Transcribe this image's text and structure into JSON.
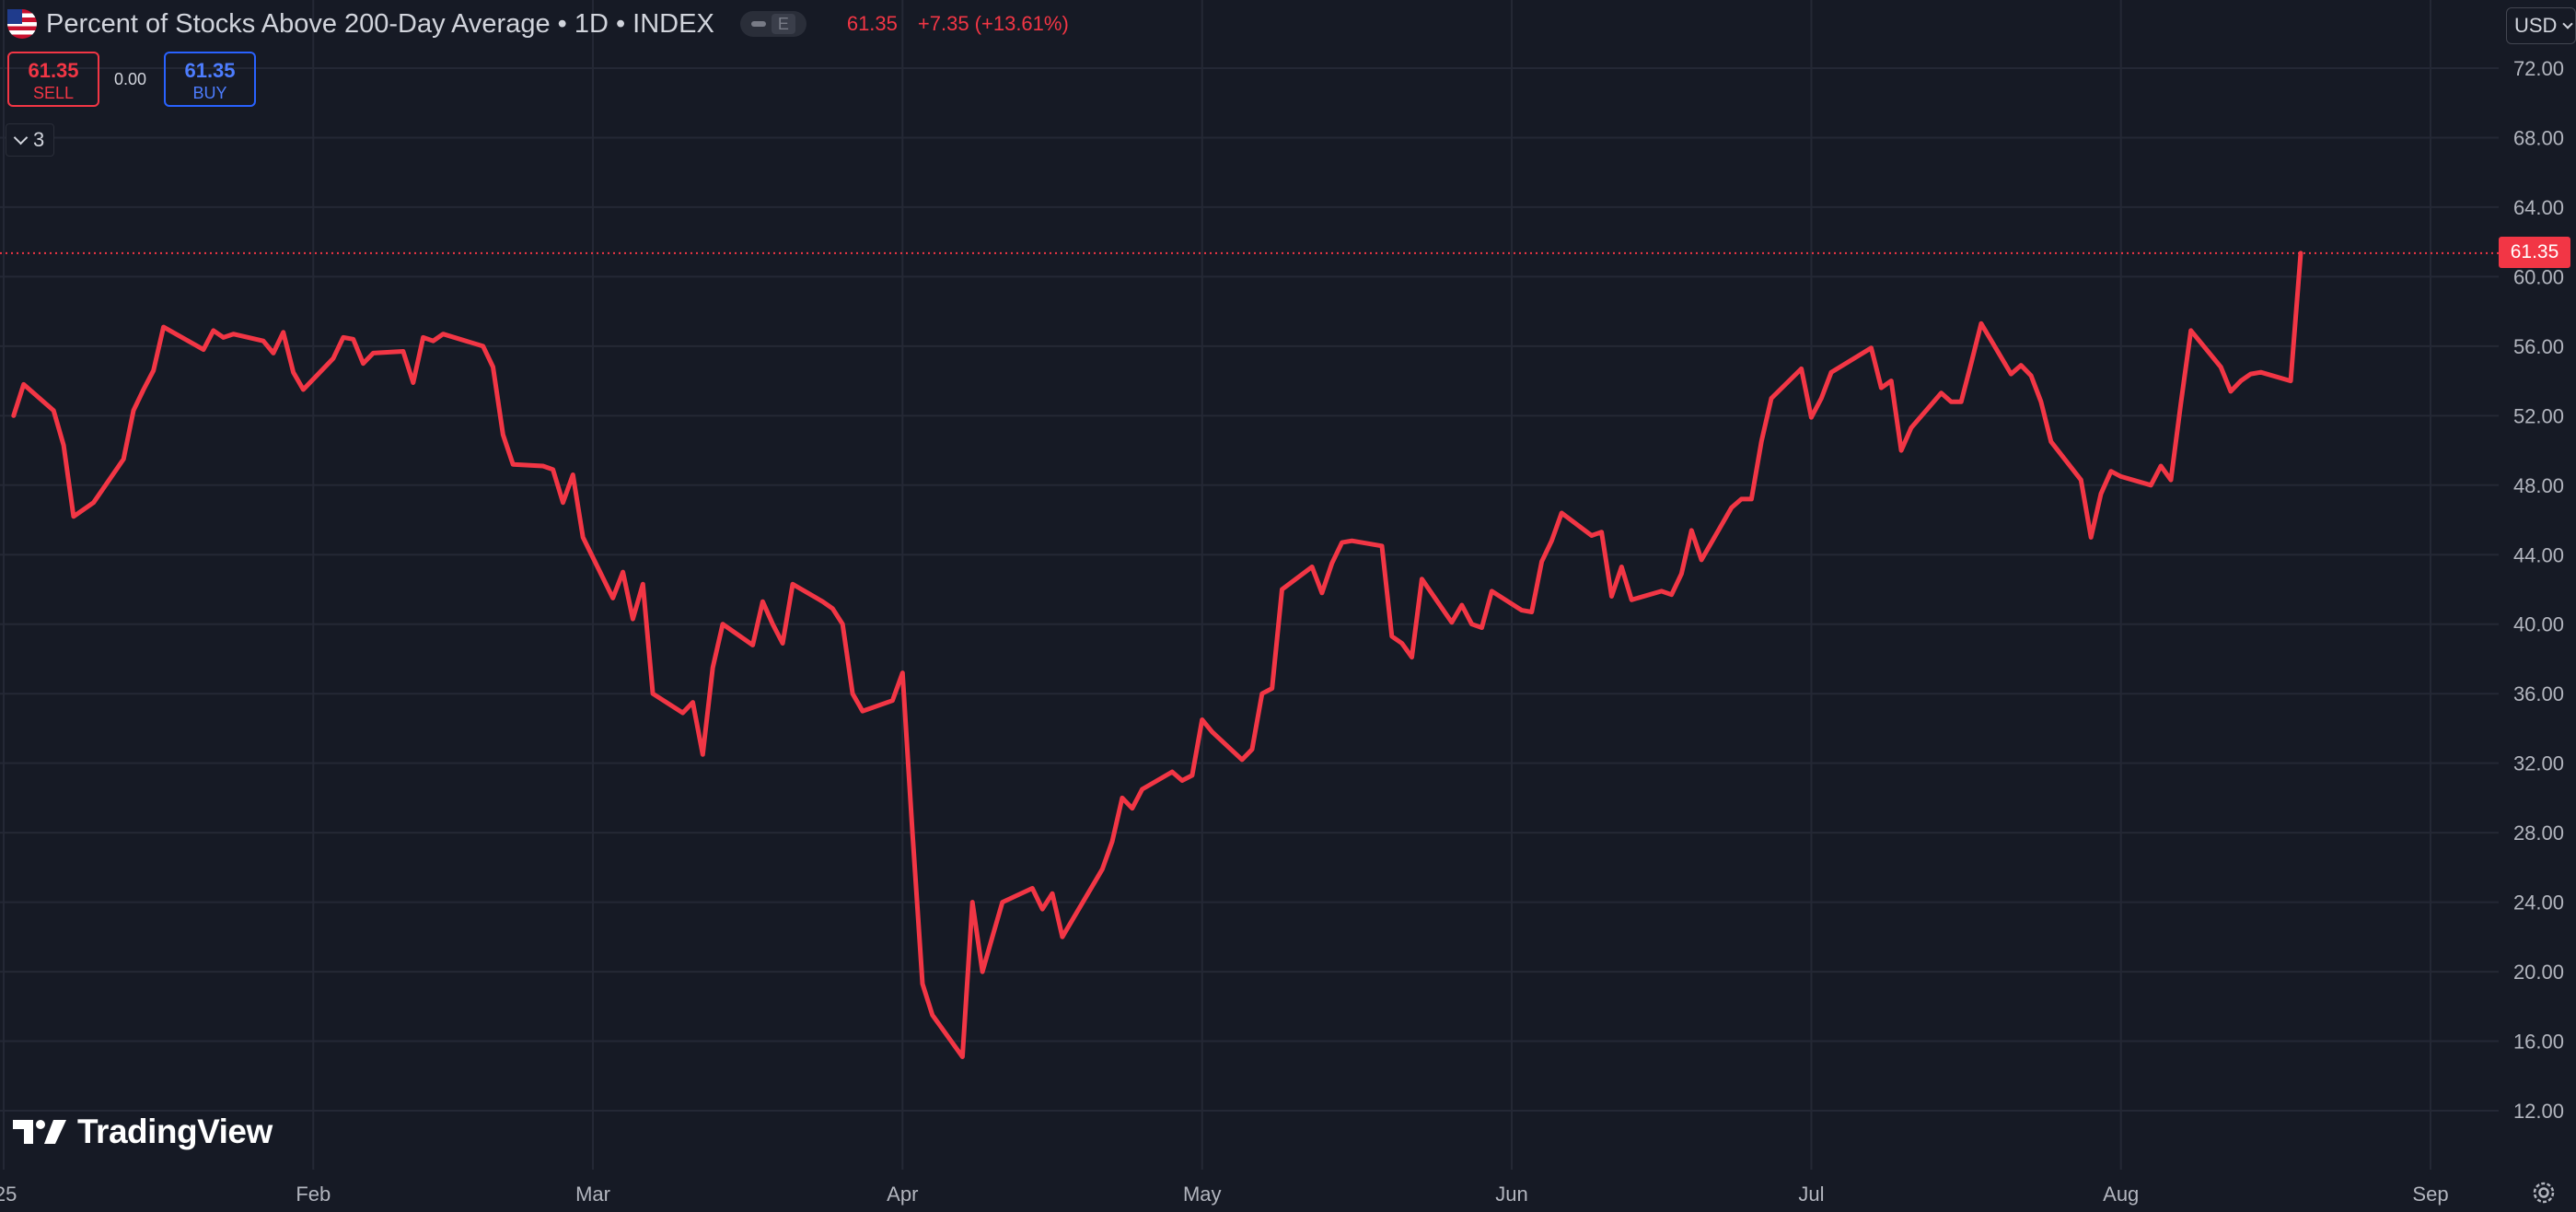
{
  "header": {
    "title": "Percent of Stocks Above 200-Day Average • 1D • INDEX",
    "pill_letter": "E",
    "last_price": "61.35",
    "change": "+7.35 (+13.61%)"
  },
  "trade": {
    "sell_value": "61.35",
    "sell_label": "SELL",
    "spread": "0.00",
    "buy_value": "61.35",
    "buy_label": "BUY"
  },
  "indicators": {
    "collapsed_count": "3"
  },
  "currency": "USD",
  "price_marker": "61.35",
  "logo_text": "TradingView",
  "colors": {
    "background": "#161a25",
    "line": "#f23645",
    "grid": "#242835",
    "buy": "#2962ff"
  },
  "icons": [
    "us-flag-icon",
    "chevron-down-icon",
    "settings-icon",
    "tradingview-logo-icon"
  ],
  "chart_data": {
    "type": "line",
    "title": "Percent of Stocks Above 200-Day Average",
    "ylim": [
      8,
      74
    ],
    "y_ticks": [
      "72.00",
      "68.00",
      "64.00",
      "60.00",
      "56.00",
      "52.00",
      "48.00",
      "44.00",
      "40.00",
      "36.00",
      "32.00",
      "28.00",
      "24.00",
      "20.00",
      "16.00",
      "12.00"
    ],
    "x_ticks": [
      {
        "label": "'25",
        "x": "2025-01-01"
      },
      {
        "label": "Feb",
        "x": "2025-02-01"
      },
      {
        "label": "Mar",
        "x": "2025-03-01"
      },
      {
        "label": "Apr",
        "x": "2025-04-01"
      },
      {
        "label": "May",
        "x": "2025-05-01"
      },
      {
        "label": "Jun",
        "x": "2025-06-01"
      },
      {
        "label": "Jul",
        "x": "2025-07-01"
      },
      {
        "label": "Aug",
        "x": "2025-08-01"
      },
      {
        "label": "Sep",
        "x": "2025-09-01"
      }
    ],
    "current_value": 61.35,
    "series": [
      {
        "points": [
          [
            "2025-01-02",
            52.0
          ],
          [
            "2025-01-03",
            53.8
          ],
          [
            "2025-01-06",
            52.3
          ],
          [
            "2025-01-07",
            50.3
          ],
          [
            "2025-01-08",
            46.2
          ],
          [
            "2025-01-10",
            47.0
          ],
          [
            "2025-01-13",
            49.5
          ],
          [
            "2025-01-14",
            52.3
          ],
          [
            "2025-01-15",
            53.5
          ],
          [
            "2025-01-16",
            54.6
          ],
          [
            "2025-01-17",
            57.1
          ],
          [
            "2025-01-21",
            55.8
          ],
          [
            "2025-01-22",
            56.9
          ],
          [
            "2025-01-23",
            56.5
          ],
          [
            "2025-01-24",
            56.7
          ],
          [
            "2025-01-27",
            56.3
          ],
          [
            "2025-01-28",
            55.6
          ],
          [
            "2025-01-29",
            56.8
          ],
          [
            "2025-01-30",
            54.5
          ],
          [
            "2025-01-31",
            53.5
          ],
          [
            "2025-02-03",
            55.3
          ],
          [
            "2025-02-04",
            56.5
          ],
          [
            "2025-02-05",
            56.4
          ],
          [
            "2025-02-06",
            55.0
          ],
          [
            "2025-02-07",
            55.6
          ],
          [
            "2025-02-10",
            55.7
          ],
          [
            "2025-02-11",
            53.9
          ],
          [
            "2025-02-12",
            56.5
          ],
          [
            "2025-02-13",
            56.3
          ],
          [
            "2025-02-14",
            56.7
          ],
          [
            "2025-02-18",
            56.0
          ],
          [
            "2025-02-19",
            54.8
          ],
          [
            "2025-02-20",
            50.9
          ],
          [
            "2025-02-21",
            49.2
          ],
          [
            "2025-02-24",
            49.1
          ],
          [
            "2025-02-25",
            48.9
          ],
          [
            "2025-02-26",
            47.0
          ],
          [
            "2025-02-27",
            48.6
          ],
          [
            "2025-02-28",
            45.0
          ],
          [
            "2025-03-03",
            41.5
          ],
          [
            "2025-03-04",
            43.0
          ],
          [
            "2025-03-05",
            40.3
          ],
          [
            "2025-03-06",
            42.3
          ],
          [
            "2025-03-07",
            36.0
          ],
          [
            "2025-03-10",
            34.9
          ],
          [
            "2025-03-11",
            35.5
          ],
          [
            "2025-03-12",
            32.5
          ],
          [
            "2025-03-13",
            37.5
          ],
          [
            "2025-03-14",
            40.0
          ],
          [
            "2025-03-17",
            38.8
          ],
          [
            "2025-03-18",
            41.3
          ],
          [
            "2025-03-19",
            40.0
          ],
          [
            "2025-03-20",
            38.9
          ],
          [
            "2025-03-21",
            42.3
          ],
          [
            "2025-03-24",
            41.3
          ],
          [
            "2025-03-25",
            40.9
          ],
          [
            "2025-03-26",
            40.0
          ],
          [
            "2025-03-27",
            36.0
          ],
          [
            "2025-03-28",
            35.0
          ],
          [
            "2025-03-31",
            35.6
          ],
          [
            "2025-04-01",
            37.2
          ],
          [
            "2025-04-02",
            28.0
          ],
          [
            "2025-04-03",
            19.3
          ],
          [
            "2025-04-04",
            17.5
          ],
          [
            "2025-04-07",
            15.1
          ],
          [
            "2025-04-08",
            24.0
          ],
          [
            "2025-04-09",
            20.0
          ],
          [
            "2025-04-10",
            22.0
          ],
          [
            "2025-04-11",
            24.0
          ],
          [
            "2025-04-14",
            24.8
          ],
          [
            "2025-04-15",
            23.6
          ],
          [
            "2025-04-16",
            24.5
          ],
          [
            "2025-04-17",
            22.0
          ],
          [
            "2025-04-21",
            25.9
          ],
          [
            "2025-04-22",
            27.5
          ],
          [
            "2025-04-23",
            30.0
          ],
          [
            "2025-04-24",
            29.4
          ],
          [
            "2025-04-25",
            30.5
          ],
          [
            "2025-04-28",
            31.5
          ],
          [
            "2025-04-29",
            31.0
          ],
          [
            "2025-04-30",
            31.3
          ],
          [
            "2025-05-01",
            34.5
          ],
          [
            "2025-05-02",
            33.8
          ],
          [
            "2025-05-05",
            32.2
          ],
          [
            "2025-05-06",
            32.8
          ],
          [
            "2025-05-07",
            36.0
          ],
          [
            "2025-05-08",
            36.3
          ],
          [
            "2025-05-09",
            42.0
          ],
          [
            "2025-05-12",
            43.3
          ],
          [
            "2025-05-13",
            41.8
          ],
          [
            "2025-05-14",
            43.5
          ],
          [
            "2025-05-15",
            44.7
          ],
          [
            "2025-05-16",
            44.8
          ],
          [
            "2025-05-19",
            44.5
          ],
          [
            "2025-05-20",
            39.3
          ],
          [
            "2025-05-21",
            38.9
          ],
          [
            "2025-05-22",
            38.1
          ],
          [
            "2025-05-23",
            42.6
          ],
          [
            "2025-05-26",
            40.1
          ],
          [
            "2025-05-27",
            41.1
          ],
          [
            "2025-05-28",
            40.0
          ],
          [
            "2025-05-29",
            39.8
          ],
          [
            "2025-05-30",
            41.9
          ],
          [
            "2025-06-02",
            40.8
          ],
          [
            "2025-06-03",
            40.7
          ],
          [
            "2025-06-04",
            43.6
          ],
          [
            "2025-06-05",
            44.8
          ],
          [
            "2025-06-06",
            46.4
          ],
          [
            "2025-06-09",
            45.1
          ],
          [
            "2025-06-10",
            45.3
          ],
          [
            "2025-06-11",
            41.6
          ],
          [
            "2025-06-12",
            43.3
          ],
          [
            "2025-06-13",
            41.4
          ],
          [
            "2025-06-16",
            41.9
          ],
          [
            "2025-06-17",
            41.7
          ],
          [
            "2025-06-18",
            42.9
          ],
          [
            "2025-06-19",
            45.4
          ],
          [
            "2025-06-20",
            43.7
          ],
          [
            "2025-06-23",
            46.7
          ],
          [
            "2025-06-24",
            47.2
          ],
          [
            "2025-06-25",
            47.2
          ],
          [
            "2025-06-26",
            50.5
          ],
          [
            "2025-06-27",
            53.0
          ],
          [
            "2025-06-30",
            54.7
          ],
          [
            "2025-07-01",
            51.9
          ],
          [
            "2025-07-02",
            53.0
          ],
          [
            "2025-07-03",
            54.5
          ],
          [
            "2025-07-07",
            55.9
          ],
          [
            "2025-07-08",
            53.6
          ],
          [
            "2025-07-09",
            54.0
          ],
          [
            "2025-07-10",
            50.0
          ],
          [
            "2025-07-11",
            51.3
          ],
          [
            "2025-07-14",
            53.3
          ],
          [
            "2025-07-15",
            52.8
          ],
          [
            "2025-07-16",
            52.8
          ],
          [
            "2025-07-17",
            55.0
          ],
          [
            "2025-07-18",
            57.3
          ],
          [
            "2025-07-21",
            54.4
          ],
          [
            "2025-07-22",
            54.9
          ],
          [
            "2025-07-23",
            54.3
          ],
          [
            "2025-07-24",
            52.8
          ],
          [
            "2025-07-25",
            50.5
          ],
          [
            "2025-07-28",
            48.3
          ],
          [
            "2025-07-29",
            45.0
          ],
          [
            "2025-07-30",
            47.5
          ],
          [
            "2025-07-31",
            48.8
          ],
          [
            "2025-08-01",
            48.5
          ],
          [
            "2025-08-04",
            48.0
          ],
          [
            "2025-08-05",
            49.1
          ],
          [
            "2025-08-06",
            48.3
          ],
          [
            "2025-08-07",
            52.7
          ],
          [
            "2025-08-08",
            56.9
          ],
          [
            "2025-08-11",
            54.8
          ],
          [
            "2025-08-12",
            53.4
          ],
          [
            "2025-08-13",
            54.0
          ],
          [
            "2025-08-14",
            54.4
          ],
          [
            "2025-08-15",
            54.5
          ],
          [
            "2025-08-18",
            54.0
          ],
          [
            "2025-08-19",
            61.35
          ]
        ]
      }
    ]
  }
}
